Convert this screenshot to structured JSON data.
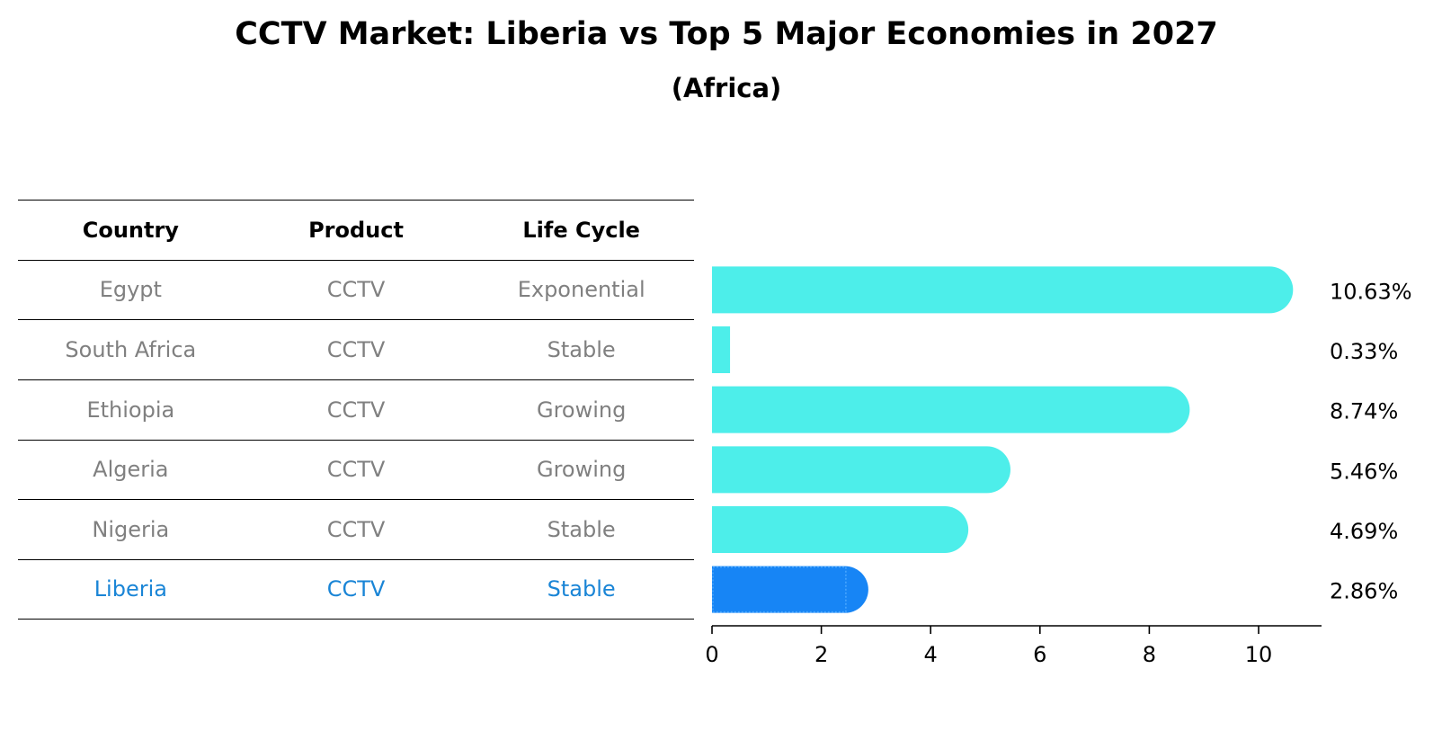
{
  "title": "CCTV Market: Liberia vs Top 5 Major Economies in 2027",
  "subtitle": "(Africa)",
  "table": {
    "headers": [
      "Country",
      "Product",
      "Life Cycle"
    ],
    "rows": [
      {
        "country": "Egypt",
        "product": "CCTV",
        "life_cycle": "Exponential",
        "highlight": false
      },
      {
        "country": "South Africa",
        "product": "CCTV",
        "life_cycle": "Stable",
        "highlight": false
      },
      {
        "country": "Ethiopia",
        "product": "CCTV",
        "life_cycle": "Growing",
        "highlight": false
      },
      {
        "country": "Algeria",
        "product": "CCTV",
        "life_cycle": "Growing",
        "highlight": false
      },
      {
        "country": "Nigeria",
        "product": "CCTV",
        "life_cycle": "Stable",
        "highlight": false
      },
      {
        "country": "Liberia",
        "product": "CCTV",
        "life_cycle": "Stable",
        "highlight": true
      }
    ]
  },
  "chart_data": {
    "type": "bar",
    "orientation": "horizontal",
    "title": "CCTV Market: Liberia vs Top 5 Major Economies in 2027",
    "subtitle": "(Africa)",
    "categories": [
      "Egypt",
      "South Africa",
      "Ethiopia",
      "Algeria",
      "Nigeria",
      "Liberia"
    ],
    "values": [
      10.63,
      0.33,
      8.74,
      5.46,
      4.69,
      2.86
    ],
    "value_labels": [
      "10.63%",
      "0.33%",
      "8.74%",
      "5.46%",
      "4.69%",
      "2.86%"
    ],
    "highlight_category": "Liberia",
    "xlim": [
      0,
      11.2
    ],
    "xticks": [
      0,
      2,
      4,
      6,
      8,
      10
    ],
    "xlabel": "",
    "ylabel": "",
    "grid": false,
    "colors": {
      "default": "#4DEEEA",
      "highlight": "#1785F5",
      "table_highlight_text": "#1A85D6",
      "table_text": "#808080"
    }
  }
}
